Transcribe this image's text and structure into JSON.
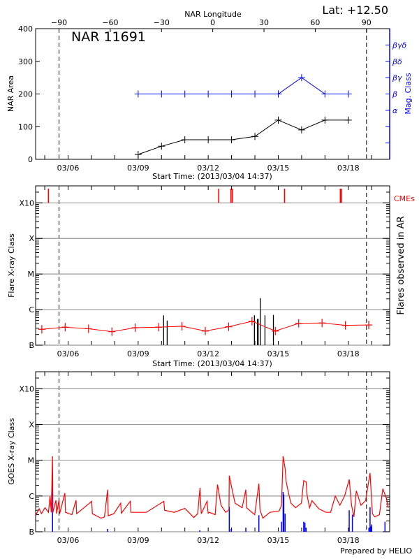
{
  "header": {
    "lat_label": "Lat: +12.50"
  },
  "footer": {
    "credit": "Prepared by HELIO"
  },
  "colors": {
    "area": "#000000",
    "mag_class": "#0000ff",
    "flares_line": "#ff0000",
    "flare_bars": "#000000",
    "cme": "#ff0000",
    "goes_long": "#ff0000",
    "goes_short": "#0000ff",
    "grid": "#999999"
  },
  "x_axis": {
    "xlim": [
      "03/04 14:37",
      "03/19 18:30"
    ],
    "tick_labels": [
      "03/06",
      "03/09",
      "03/12",
      "03/15",
      "03/18"
    ],
    "tick_dates": [
      "03/06 00:00",
      "03/09 00:00",
      "03/12 00:00",
      "03/15 00:00",
      "03/18 00:00"
    ],
    "minor_tick_days": [
      "03/05",
      "03/06",
      "03/07",
      "03/08",
      "03/09",
      "03/10",
      "03/11",
      "03/12",
      "03/13",
      "03/14",
      "03/15",
      "03/16",
      "03/17",
      "03/18",
      "03/19"
    ],
    "label": "Start Time: (2013/03/04 14:37)"
  },
  "limb_crossings": [
    "03/05 14:40",
    "03/18 18:40"
  ],
  "chart_data": [
    {
      "type": "line",
      "title": "NAR 11691",
      "top_axis": {
        "label": "NAR Longitude",
        "ticks": [
          -90,
          -60,
          -30,
          0,
          30,
          60,
          90
        ]
      },
      "ylabel": "NAR Area",
      "ylim": [
        0,
        400
      ],
      "yticks": [
        0,
        100,
        200,
        300,
        400
      ],
      "y2label": "Mag. Class",
      "y2ticks": [
        "",
        "",
        "α",
        "β",
        "βγ",
        "βδ",
        "βγδ"
      ],
      "x": [
        "03/09 00:00",
        "03/10 00:00",
        "03/11 00:00",
        "03/12 00:00",
        "03/13 00:00",
        "03/14 00:00",
        "03/15 00:00",
        "03/16 00:00",
        "03/17 00:00",
        "03/18 00:00"
      ],
      "series": [
        {
          "values": [
            15,
            40,
            60,
            60,
            60,
            70,
            120,
            90,
            120,
            120
          ]
        },
        {
          "values": [
            "β",
            "β",
            "β",
            "β",
            "β",
            "β",
            "β",
            "βγ",
            "β",
            "β"
          ]
        }
      ]
    },
    {
      "type": "line",
      "ylabel": "Flare X-ray Class",
      "y2label": "Flares observed in AR",
      "ylim": [
        "B1",
        "X30"
      ],
      "yticks": [
        "B1",
        "C1",
        "M1",
        "X1",
        "X10"
      ],
      "ytick_labels": [
        "B",
        "C",
        "M",
        "X",
        "X10"
      ],
      "grid": true,
      "cme_label": "CMEs",
      "line": {
        "x": [
          "03/04 21:00",
          "03/05 21:00",
          "03/06 21:00",
          "03/07 21:00",
          "03/08 21:00",
          "03/09 21:00",
          "03/10 21:00",
          "03/11 21:00",
          "03/12 21:00",
          "03/13 21:00",
          "03/14 21:00",
          "03/15 21:00",
          "03/16 21:00",
          "03/17 21:00",
          "03/18 21:00"
        ],
        "values": [
          "B2.8",
          "B3.2",
          "B2.9",
          "B2.4",
          "B3.1",
          "B3.2",
          "B3.4",
          "B2.5",
          "B3.3",
          "B4.7",
          "B2.5",
          "B4.1",
          "B4.2",
          "B3.6",
          "B3.7"
        ]
      },
      "flares": [
        {
          "x": "03/10 02:10",
          "class": "B6.9"
        },
        {
          "x": "03/10 05:50",
          "class": "B4.9"
        },
        {
          "x": "03/13 23:30",
          "class": "B6.9"
        },
        {
          "x": "03/14 02:40",
          "class": "B5.5"
        },
        {
          "x": "03/14 03:20",
          "class": "B5.5"
        },
        {
          "x": "03/14 05:30",
          "class": "C2.1"
        },
        {
          "x": "03/14 10:20",
          "class": "B6.9"
        },
        {
          "x": "03/14 19:00",
          "class": "B7.1"
        }
      ],
      "cmes": [
        "03/05 03:50",
        "03/12 10:50",
        "03/12 23:20",
        "03/13 00:45",
        "03/15 06:30",
        "03/17 15:50",
        "03/17 16:50"
      ]
    },
    {
      "type": "line",
      "ylabel": "GOES X-ray Class",
      "ylim": [
        "B1",
        "X30"
      ],
      "yticks": [
        "B1",
        "C1",
        "M1",
        "X1",
        "X10"
      ],
      "ytick_labels": [
        "B",
        "C",
        "M",
        "X",
        "X10"
      ],
      "grid": true,
      "long_channel": [
        [
          "03/04 14:40",
          "B2.9"
        ],
        [
          "03/04 18:15",
          "B4.4"
        ],
        [
          "03/04 20:40",
          "B3.2"
        ],
        [
          "03/05 00:15",
          "B4.7"
        ],
        [
          "03/05 03:50",
          "B3.5"
        ],
        [
          "03/05 05:30",
          "C1.0"
        ],
        [
          "03/05 06:40",
          "B3.5"
        ],
        [
          "03/05 08:00",
          "M1.3"
        ],
        [
          "03/05 08:25",
          "B3.5"
        ],
        [
          "03/05 11:30",
          "B7.6"
        ],
        [
          "03/05 12:15",
          "B3.2"
        ],
        [
          "03/05 14:40",
          "B7.9"
        ],
        [
          "03/05 15:20",
          "B3.2"
        ],
        [
          "03/05 20:40",
          "C1.2"
        ],
        [
          "03/05 21:20",
          "B3.5"
        ],
        [
          "03/06 03:50",
          "B3.0"
        ],
        [
          "03/06 08:10",
          "B7.6"
        ],
        [
          "03/06 08:50",
          "B3.2"
        ],
        [
          "03/07 00:15",
          "B7.1"
        ],
        [
          "03/07 01:00",
          "B3.2"
        ],
        [
          "03/07 09:50",
          "B2.4"
        ],
        [
          "03/07 13:25",
          "B2.6"
        ],
        [
          "03/07 16:35",
          "C1.5"
        ],
        [
          "03/07 17:15",
          "B2.8"
        ],
        [
          "03/07 23:00",
          "B3.2"
        ],
        [
          "03/08 06:00",
          "B6.3"
        ],
        [
          "03/08 06:45",
          "B3.3"
        ],
        [
          "03/08 15:50",
          "B7.1"
        ],
        [
          "03/08 16:35",
          "B3.5"
        ],
        [
          "03/09 08:25",
          "B3.5"
        ],
        [
          "03/10 02:25",
          "B7.1"
        ],
        [
          "03/10 03:10",
          "B4.0"
        ],
        [
          "03/10 13:10",
          "B3.5"
        ],
        [
          "03/11 00:00",
          "B4.5"
        ],
        [
          "03/11 09:10",
          "B2.5"
        ],
        [
          "03/11 13:10",
          "B3.2"
        ],
        [
          "03/11 15:35",
          "C1.7"
        ],
        [
          "03/11 16:50",
          "B3.2"
        ],
        [
          "03/11 22:50",
          "B7.1"
        ],
        [
          "03/12 00:00",
          "B3.3"
        ],
        [
          "03/12 01:10",
          "B3.5"
        ],
        [
          "03/12 07:10",
          "B3.0"
        ],
        [
          "03/12 09:35",
          "C2.1"
        ],
        [
          "03/12 13:10",
          "B5.5"
        ],
        [
          "03/12 18:00",
          "B3.5"
        ],
        [
          "03/12 21:20",
          "B4.1"
        ],
        [
          "03/12 21:40",
          "C3.7"
        ],
        [
          "03/13 00:00",
          "C1.8"
        ],
        [
          "03/13 03:35",
          "B6.3"
        ],
        [
          "03/13 10:50",
          "B4.7"
        ],
        [
          "03/13 14:40",
          "C1.5"
        ],
        [
          "03/13 15:20",
          "B4.7"
        ],
        [
          "03/13 23:45",
          "B3.0"
        ],
        [
          "03/14 04:05",
          "C2.2"
        ],
        [
          "03/14 05:15",
          "B4.1"
        ],
        [
          "03/14 08:10",
          "B2.4"
        ],
        [
          "03/14 15:20",
          "B3.5"
        ],
        [
          "03/15 00:55",
          "B3.8"
        ],
        [
          "03/15 03:20",
          "B5.5"
        ],
        [
          "03/15 05:00",
          "M1.3"
        ],
        [
          "03/15 07:00",
          "C6.0"
        ],
        [
          "03/15 08:10",
          "C2.5"
        ],
        [
          "03/15 10:35",
          "C1.2"
        ],
        [
          "03/15 13:00",
          "B6.3"
        ],
        [
          "03/15 17:45",
          "B4.7"
        ],
        [
          "03/15 23:45",
          "B6.3"
        ],
        [
          "03/16 02:10",
          "C2.7"
        ],
        [
          "03/16 04:35",
          "C2.5"
        ],
        [
          "03/16 05:45",
          "C1.0"
        ],
        [
          "03/16 08:10",
          "B4.7"
        ],
        [
          "03/16 10:35",
          "B7.4"
        ],
        [
          "03/16 17:45",
          "B4.4"
        ],
        [
          "03/17 00:55",
          "B3.5"
        ],
        [
          "03/17 05:45",
          "B3.5"
        ],
        [
          "03/17 10:35",
          "C1.0"
        ],
        [
          "03/17 15:20",
          "B5.5"
        ],
        [
          "03/17 20:10",
          "C1.0"
        ],
        [
          "03/18 00:55",
          "C2.9"
        ],
        [
          "03/18 03:20",
          "B5.5"
        ],
        [
          "03/18 05:45",
          "B2.6"
        ],
        [
          "03/18 08:10",
          "C1.4"
        ],
        [
          "03/18 13:00",
          "B5.5"
        ],
        [
          "03/18 17:45",
          "B7.4"
        ],
        [
          "03/18 22:20",
          "C4.4"
        ],
        [
          "03/19 00:45",
          "B3.2"
        ],
        [
          "03/19 03:10",
          "B2.6"
        ],
        [
          "03/19 07:55",
          "B3.0"
        ],
        [
          "03/19 11:30",
          "C1.6"
        ],
        [
          "03/19 15:10",
          "B8.5"
        ],
        [
          "03/19 17:00",
          "B4.7"
        ]
      ],
      "short_channel": [
        [
          "03/05 08:00",
          "C2.9"
        ],
        [
          "03/07 16:35",
          "B1.2"
        ],
        [
          "03/11 15:20",
          "B1.1"
        ],
        [
          "03/12 21:40",
          "B5.0"
        ],
        [
          "03/12 23:40",
          "B1.2"
        ],
        [
          "03/13 14:40",
          "B1.3"
        ],
        [
          "03/14 04:05",
          "B2.9"
        ],
        [
          "03/15 03:20",
          "B1.9"
        ],
        [
          "03/15 05:00",
          "C1.3"
        ],
        [
          "03/15 05:40",
          "C1.1"
        ],
        [
          "03/15 07:00",
          "B3.2"
        ],
        [
          "03/16 02:10",
          "B1.9"
        ],
        [
          "03/16 03:25",
          "B1.8"
        ],
        [
          "03/16 04:35",
          "B1.3"
        ],
        [
          "03/18 00:55",
          "B4.0"
        ],
        [
          "03/18 04:10",
          "B3.0"
        ],
        [
          "03/18 21:10",
          "B1.3"
        ],
        [
          "03/18 23:00",
          "B1.4"
        ],
        [
          "03/18 22:20",
          "B4.9"
        ],
        [
          "03/19 00:00",
          "B1.6"
        ],
        [
          "03/19 13:40",
          "B1.9"
        ]
      ]
    }
  ]
}
